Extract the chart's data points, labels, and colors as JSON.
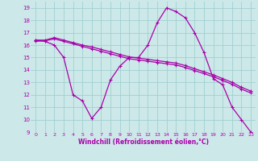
{
  "xlabel": "Windchill (Refroidissement éolien,°C)",
  "bg_color": "#cce8e8",
  "line_color": "#aa00aa",
  "grid_color": "#99cccc",
  "xlim": [
    -0.5,
    23.5
  ],
  "ylim": [
    9,
    19.5
  ],
  "yticks": [
    9,
    10,
    11,
    12,
    13,
    14,
    15,
    16,
    17,
    18,
    19
  ],
  "xticks": [
    0,
    1,
    2,
    3,
    4,
    5,
    6,
    7,
    8,
    9,
    10,
    11,
    12,
    13,
    14,
    15,
    16,
    17,
    18,
    19,
    20,
    21,
    22,
    23
  ],
  "series1_x": [
    0,
    1,
    2,
    3,
    4,
    5,
    6,
    7,
    8,
    9,
    10,
    11,
    12,
    13,
    14,
    15,
    16,
    17,
    18,
    19,
    20,
    21,
    22,
    23
  ],
  "series1_y": [
    16.4,
    16.4,
    16.6,
    16.4,
    16.2,
    16.0,
    15.85,
    15.65,
    15.45,
    15.25,
    15.05,
    14.95,
    14.85,
    14.75,
    14.65,
    14.55,
    14.35,
    14.1,
    13.85,
    13.6,
    13.3,
    13.0,
    12.6,
    12.3
  ],
  "series2_x": [
    0,
    1,
    2,
    3,
    4,
    5,
    6,
    7,
    8,
    9,
    10,
    11,
    12,
    13,
    14,
    15,
    16,
    17,
    18,
    19,
    20,
    21,
    22,
    23
  ],
  "series2_y": [
    16.3,
    16.35,
    16.5,
    16.3,
    16.1,
    15.9,
    15.7,
    15.5,
    15.3,
    15.1,
    14.9,
    14.8,
    14.7,
    14.6,
    14.5,
    14.4,
    14.2,
    13.95,
    13.7,
    13.45,
    13.15,
    12.85,
    12.45,
    12.15
  ],
  "series3_x": [
    0,
    1,
    2,
    3,
    4,
    5,
    6,
    7,
    8,
    9,
    10,
    11,
    12,
    13,
    14,
    15,
    16,
    17,
    18,
    19,
    20,
    21,
    22,
    23
  ],
  "series3_y": [
    16.4,
    16.3,
    16.0,
    15.0,
    12.0,
    11.5,
    10.1,
    11.0,
    13.2,
    14.3,
    15.0,
    15.0,
    16.0,
    17.8,
    19.0,
    18.7,
    18.2,
    17.0,
    15.4,
    13.3,
    12.8,
    11.0,
    10.0,
    9.0
  ]
}
